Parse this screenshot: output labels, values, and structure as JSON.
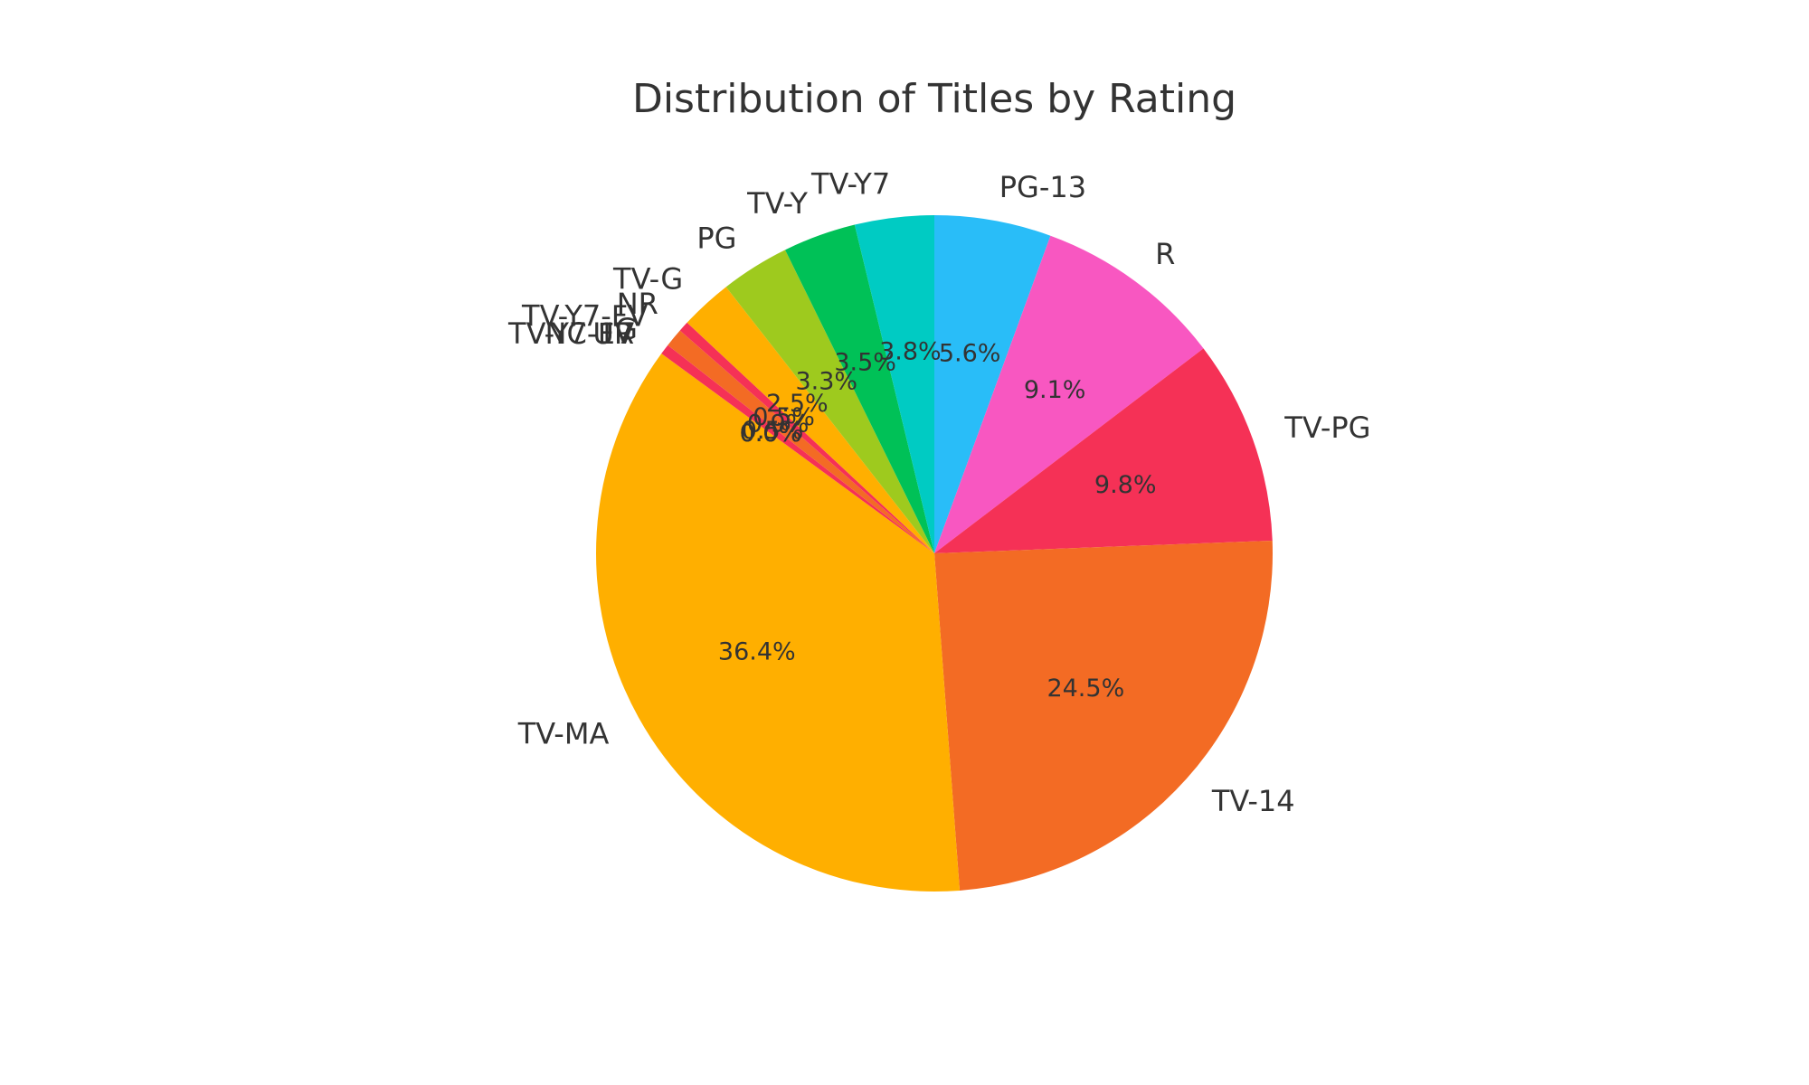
{
  "chart_data": {
    "type": "pie",
    "title": "Distribution of Titles by Rating",
    "start_angle_deg": 90,
    "direction": "clockwise",
    "categories": [
      "PG-13",
      "R",
      "TV-PG",
      "TV-14",
      "TV-MA",
      "TV-Y7-FV",
      "UR",
      "NC-17",
      "G",
      "TV-Y7-FV",
      "NR",
      "TV-G",
      "PG",
      "TV-Y",
      "TV-Y7"
    ],
    "labels_shown": [
      "PG-13",
      "R",
      "TV-PG",
      "TV-14",
      "TV-MA",
      "TV-Y7-FV",
      "UR",
      "NC-17",
      "G",
      "TV-Y7-FV",
      "NR",
      "TV-G",
      "PG",
      "TV-Y",
      "TV-Y7"
    ],
    "values": [
      5.6,
      9.1,
      9.8,
      24.5,
      36.4,
      0.0,
      0.0,
      0.0,
      0.5,
      0.9,
      0.5,
      2.5,
      3.3,
      3.5,
      3.8
    ],
    "percent_labels": [
      "5.6%",
      "9.1%",
      "9.8%",
      "24.5%",
      "36.4%",
      "0.0%",
      "0.0%",
      "0.0%",
      "0.5%",
      "0.9%",
      "0.5%",
      "2.5%",
      "3.3%",
      "3.5%",
      "3.8%"
    ],
    "colors": [
      "#29BDF8",
      "#F857C1",
      "#F53156",
      "#F36B24",
      "#FFAF00",
      "#2E86C1",
      "#9B59B6",
      "#7F8C8D",
      "#F53156",
      "#F36B24",
      "#F53156",
      "#FFAF00",
      "#9ECA1E",
      "#00C157",
      "#00CBC3"
    ],
    "legend": "none"
  }
}
